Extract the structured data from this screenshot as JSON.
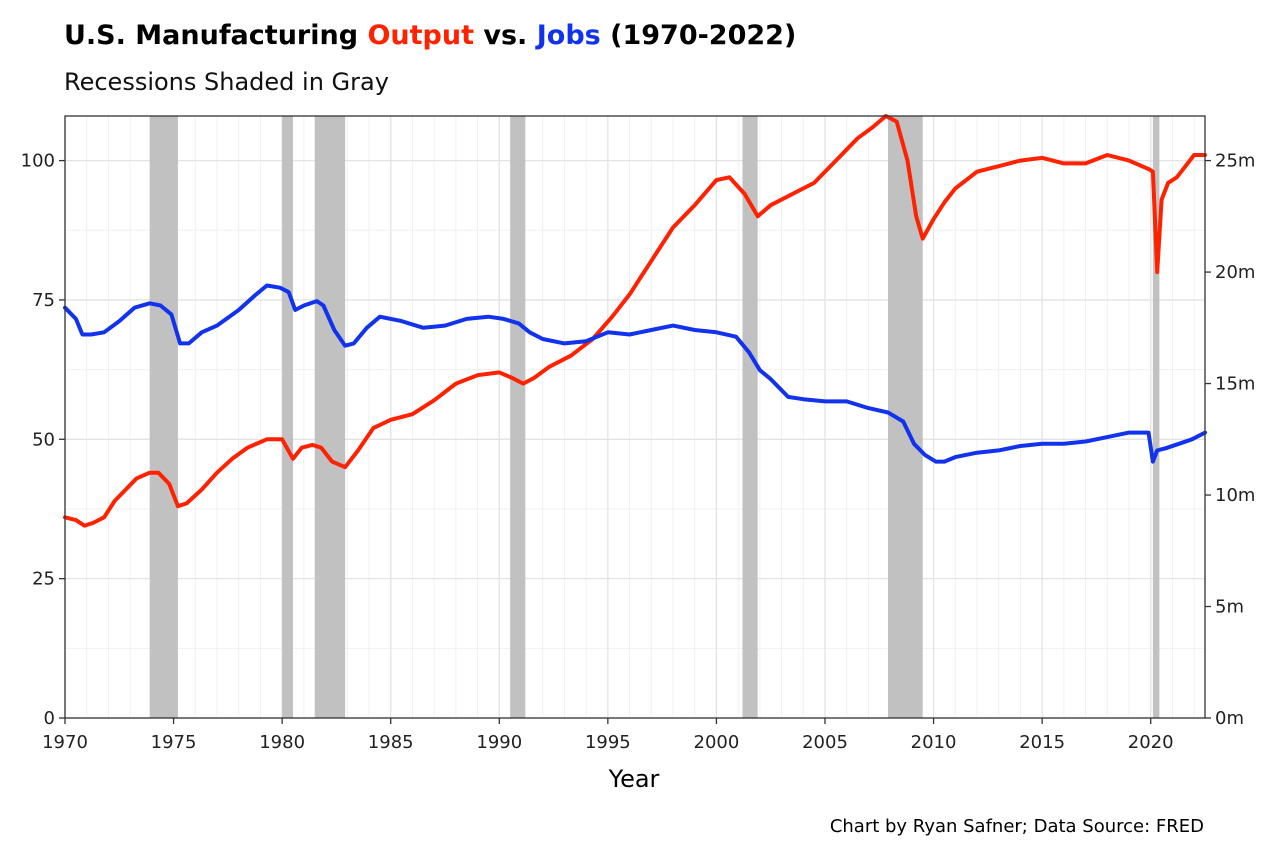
{
  "chart_data": {
    "type": "line",
    "title_parts": [
      {
        "text": "U.S. Manufacturing ",
        "color": "#000000"
      },
      {
        "text": "Output",
        "color": "#ff2200"
      },
      {
        "text": " vs. ",
        "color": "#000000"
      },
      {
        "text": "Jobs",
        "color": "#1133ee"
      },
      {
        "text": " (1970-2022)",
        "color": "#000000"
      }
    ],
    "subtitle": "Recessions Shaded in Gray",
    "xlabel": "Year",
    "caption": "Chart by Ryan Safner; Data Source: FRED",
    "xlim": [
      1970,
      2022.5
    ],
    "ylim_left": [
      0,
      108
    ],
    "ylim_right": [
      0,
      27
    ],
    "x_ticks": [
      1970,
      1975,
      1980,
      1985,
      1990,
      1995,
      2000,
      2005,
      2010,
      2015,
      2020
    ],
    "x_tick_labels": [
      "1970",
      "1975",
      "1980",
      "1985",
      "1990",
      "1995",
      "2000",
      "2005",
      "2010",
      "2015",
      "2020"
    ],
    "y_left_ticks": [
      0,
      25,
      50,
      75,
      100
    ],
    "y_left_tick_labels": [
      "0",
      "25",
      "50",
      "75",
      "100"
    ],
    "y_right_ticks": [
      0,
      5,
      10,
      15,
      20,
      25
    ],
    "y_right_tick_labels": [
      "0m",
      "5m",
      "10m",
      "15m",
      "20m",
      "25m"
    ],
    "grid": true,
    "recessions": [
      [
        1973.9,
        1975.2
      ],
      [
        1980.0,
        1980.5
      ],
      [
        1981.5,
        1982.9
      ],
      [
        1990.5,
        1991.2
      ],
      [
        2001.2,
        2001.9
      ],
      [
        2007.9,
        2009.5
      ],
      [
        2020.1,
        2020.4
      ]
    ],
    "recession_color": "#bebebe",
    "series": [
      {
        "axis": "left",
        "color": "#ff2200",
        "x": [
          1970,
          1970.5,
          1970.9,
          1971.3,
          1971.8,
          1972.3,
          1972.8,
          1973.3,
          1973.9,
          1974.3,
          1974.8,
          1975.2,
          1975.6,
          1976.3,
          1977,
          1977.7,
          1978.4,
          1979.3,
          1980,
          1980.5,
          1980.9,
          1981.4,
          1981.8,
          1982.3,
          1982.9,
          1983.5,
          1984.2,
          1985,
          1986,
          1987,
          1988,
          1989,
          1990,
          1990.6,
          1991.1,
          1991.6,
          1992.3,
          1993.3,
          1994.3,
          1995.2,
          1996,
          1997,
          1998,
          1999,
          2000,
          2000.6,
          2001.3,
          2001.9,
          2002.5,
          2003.5,
          2004.5,
          2005.5,
          2006.5,
          2007.2,
          2007.8,
          2008.3,
          2008.8,
          2009.2,
          2009.5,
          2010,
          2010.5,
          2011,
          2012,
          2013,
          2014,
          2015,
          2016,
          2017,
          2018,
          2019,
          2019.9,
          2020.1,
          2020.3,
          2020.5,
          2020.8,
          2021.2,
          2021.6,
          2022,
          2022.5
        ],
        "values": [
          36,
          35.5,
          34.5,
          35,
          36,
          39,
          41,
          43,
          44,
          44,
          42,
          38,
          38.5,
          41,
          44,
          46.5,
          48.5,
          50,
          50,
          46.5,
          48.5,
          49,
          48.5,
          46,
          45,
          48,
          52,
          53.5,
          54.5,
          57,
          60,
          61.5,
          62,
          61,
          60,
          61,
          63,
          65,
          68,
          72,
          76,
          82,
          88,
          92,
          96.5,
          97,
          94,
          90,
          92,
          94,
          96,
          100,
          104,
          106,
          108,
          107,
          100,
          90,
          86,
          89.5,
          92.5,
          95,
          98,
          99,
          100,
          100.5,
          99.5,
          99.5,
          101,
          100,
          98.5,
          98,
          80,
          93,
          96,
          97,
          99,
          101,
          101
        ]
      },
      {
        "axis": "right",
        "color": "#1133ee",
        "x": [
          1970,
          1970.5,
          1970.8,
          1971.2,
          1971.8,
          1972.5,
          1973.2,
          1973.9,
          1974.4,
          1974.9,
          1975.3,
          1975.7,
          1976.3,
          1977,
          1978,
          1978.8,
          1979.3,
          1979.9,
          1980.3,
          1980.6,
          1981,
          1981.6,
          1981.9,
          1982.4,
          1982.9,
          1983.3,
          1983.9,
          1984.5,
          1985.5,
          1986.5,
          1987.5,
          1988.5,
          1989.5,
          1990.2,
          1990.9,
          1991.4,
          1992,
          1993,
          1994,
          1995,
          1996,
          1997,
          1998,
          1999,
          2000,
          2000.9,
          2001.5,
          2002,
          2002.5,
          2003.3,
          2004,
          2005,
          2006,
          2007,
          2007.9,
          2008.6,
          2009.1,
          2009.6,
          2010.1,
          2010.5,
          2011,
          2012,
          2013,
          2014,
          2015,
          2016,
          2017,
          2018,
          2019,
          2019.9,
          2020.1,
          2020.3,
          2020.7,
          2021.3,
          2021.9,
          2022.5
        ],
        "values": [
          18.4,
          17.9,
          17.2,
          17.2,
          17.3,
          17.8,
          18.4,
          18.6,
          18.5,
          18.1,
          16.8,
          16.8,
          17.3,
          17.6,
          18.3,
          19,
          19.4,
          19.3,
          19.1,
          18.3,
          18.5,
          18.7,
          18.5,
          17.4,
          16.7,
          16.8,
          17.5,
          18,
          17.8,
          17.5,
          17.6,
          17.9,
          18,
          17.9,
          17.7,
          17.3,
          17.0,
          16.8,
          16.9,
          17.3,
          17.2,
          17.4,
          17.6,
          17.4,
          17.3,
          17.1,
          16.4,
          15.6,
          15.2,
          14.4,
          14.3,
          14.2,
          14.2,
          13.9,
          13.7,
          13.3,
          12.3,
          11.8,
          11.5,
          11.5,
          11.7,
          11.9,
          12.0,
          12.2,
          12.3,
          12.3,
          12.4,
          12.6,
          12.8,
          12.8,
          11.5,
          12.0,
          12.1,
          12.3,
          12.5,
          12.8
        ]
      }
    ]
  }
}
